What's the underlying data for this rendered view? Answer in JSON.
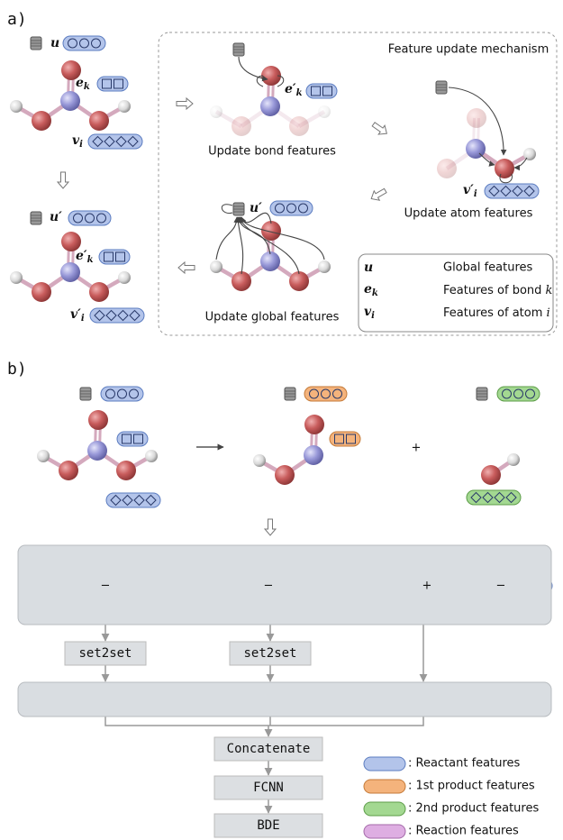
{
  "panel_a": {
    "label": "a)",
    "title": "Feature update mechanism",
    "input": {
      "global": {
        "base": "u"
      },
      "bond": {
        "base": "e",
        "sub": "k"
      },
      "atom": {
        "base": "v",
        "sub": "i"
      }
    },
    "output": {
      "global": {
        "base": "u′"
      },
      "bond": {
        "base": "e′",
        "sub": "k"
      },
      "atom": {
        "base": "v′",
        "sub": "i"
      }
    },
    "steps": [
      "Update bond features",
      "Update atom features",
      "Update global features"
    ],
    "legend": [
      {
        "symbol": {
          "base": "u"
        },
        "text": "Global features"
      },
      {
        "symbol": {
          "base": "e",
          "sub": "k"
        },
        "text": "Features of bond",
        "var": "k"
      },
      {
        "symbol": {
          "base": "v",
          "sub": "i"
        },
        "text": "Features of atom",
        "var": "i"
      }
    ]
  },
  "panel_b": {
    "label": "b)",
    "plus": "+",
    "minus": "−",
    "pooling": "set2set",
    "concat": "Concatenate",
    "fcnn": "FCNN",
    "output": "BDE",
    "legend": [
      ": Reactant features",
      ": 1st product features",
      ": 2nd product features",
      ": Reaction features"
    ]
  }
}
